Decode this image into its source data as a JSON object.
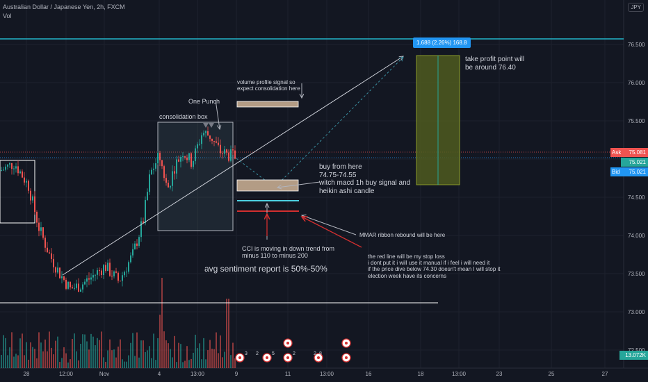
{
  "header": {
    "symbol_line": "Australian Dollar / Japanese Yen, 2h, FXCM",
    "volume_label": "Vol",
    "currency_badge": "JPY"
  },
  "price_axis": {
    "labels": [
      "76.500",
      "76.000",
      "75.500",
      "74.500",
      "74.000",
      "73.500",
      "73.000",
      "72.500"
    ],
    "ask_label": "Ask",
    "ask_value": "75.081",
    "mid_value": "75.021",
    "bid_label": "Bid",
    "bid_value": "75.021",
    "volume_value": "13.072K",
    "top_partial": "7"
  },
  "time_axis": {
    "labels": [
      "28",
      "12:00",
      "Nov",
      "4",
      "13:00",
      "9",
      "11",
      "13:00",
      "16",
      "18",
      "13:00",
      "23",
      "25",
      "27"
    ]
  },
  "annotations": {
    "measure_label": "1.688 (2.26%) 168.8",
    "take_profit": "take profit point will\nbe around 76.40",
    "volume_profile": "volume profile signal so\nexpect consolidation here",
    "one_punch": "One Punch",
    "consolidation_box": "consolidation box",
    "buy_from_here": "buy from here\n74.75-74.55\nwitch macd 1h buy signal and\nheikin ashi candle",
    "mmar": "MMAR ribbon rebound will be here",
    "cci": "CCI is moving in down trend from\nminus 110 to minus 200",
    "sentiment": "avg sentiment report is 50%-50%",
    "stop_loss": "the red line will be my stop loss\ni dont put it i will use it manual if i feel i will need it\nif the price dive below 74.30 doesn't mean I will stop it\nelection week have its concerns"
  },
  "event_badges": {
    "labels": [
      "3",
      "2",
      "5",
      "2",
      "2",
      "8"
    ]
  },
  "colors": {
    "background": "#131722",
    "up": "#26a69a",
    "down": "#ef5350",
    "teal_line": "#22b5c9",
    "ask": "#ef5350",
    "bid": "#2196f3",
    "take_profit_box": "#4f5a1f",
    "measure_label_bg": "#2196f3"
  },
  "chart_data": {
    "type": "candlestick",
    "symbol": "AUDJPY",
    "interval": "2h",
    "y_range": [
      72.45,
      77.08
    ],
    "key_levels": {
      "upper_resistance": 76.58,
      "ask": 75.081,
      "bid": 75.021,
      "target_top": 76.33,
      "target_bottom": 74.66,
      "buy_zone_high": 74.68,
      "buy_zone_low": 74.54,
      "volume_profile_zone_high": 75.7,
      "volume_profile_zone_low": 75.63,
      "mmar_level": 74.45,
      "stop_loss": 74.3,
      "support": 73.12
    }
  }
}
